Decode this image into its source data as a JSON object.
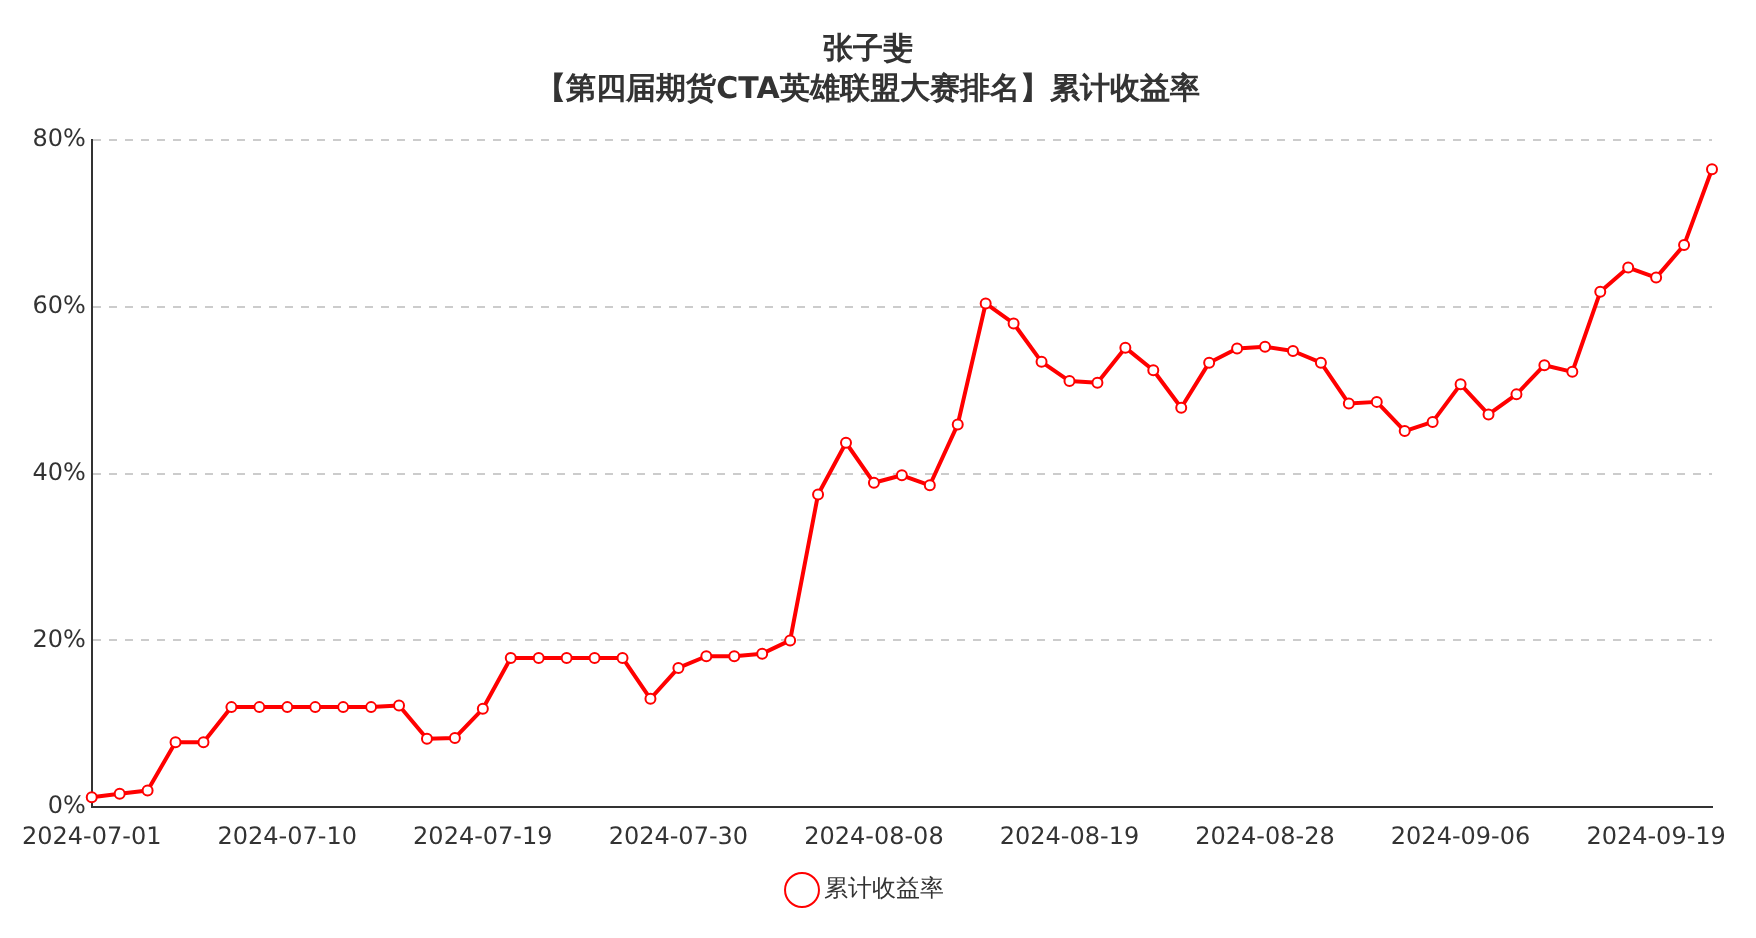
{
  "chart_data": {
    "type": "line",
    "title": "张子斐",
    "subtitle": "【第四届期货CTA英雄联盟大赛排名】累计收益率",
    "categories": [
      "2024-07-01",
      null,
      null,
      null,
      null,
      null,
      null,
      "2024-07-10",
      null,
      null,
      null,
      null,
      null,
      null,
      "2024-07-19",
      null,
      null,
      null,
      null,
      null,
      null,
      "2024-07-30",
      null,
      null,
      null,
      null,
      null,
      null,
      "2024-08-08",
      null,
      null,
      null,
      null,
      null,
      null,
      "2024-08-19",
      null,
      null,
      null,
      null,
      null,
      null,
      "2024-08-28",
      null,
      null,
      null,
      null,
      null,
      null,
      "2024-09-06",
      null,
      null,
      null,
      null,
      null,
      null,
      "2024-09-19",
      null,
      null
    ],
    "series": [
      {
        "name": "累计收益率",
        "color": "#ff0000",
        "values": [
          1.2,
          1.6,
          2.0,
          7.8,
          7.8,
          12.0,
          12.0,
          12.0,
          12.0,
          12.0,
          12.0,
          12.2,
          8.2,
          8.3,
          11.8,
          17.9,
          17.9,
          17.9,
          17.9,
          17.9,
          13.0,
          16.7,
          18.1,
          18.1,
          18.4,
          20.0,
          37.5,
          43.7,
          38.9,
          39.8,
          38.6,
          45.9,
          60.4,
          58.0,
          53.4,
          51.1,
          50.9,
          55.1,
          52.4,
          47.9,
          53.3,
          55.0,
          55.2,
          54.7,
          53.3,
          48.4,
          48.6,
          45.1,
          46.2,
          50.7,
          47.1,
          49.5,
          53.0,
          52.2,
          61.8,
          64.7,
          63.5,
          67.4,
          76.5
        ]
      }
    ],
    "ylim": [
      0,
      80
    ],
    "yticks": [
      {
        "value": 0,
        "label": "0%"
      },
      {
        "value": 20,
        "label": "20%"
      },
      {
        "value": 40,
        "label": "40%"
      },
      {
        "value": 60,
        "label": "60%"
      },
      {
        "value": 80,
        "label": "80%"
      }
    ],
    "grid": "y",
    "legend": "bottom",
    "marker": "circle",
    "line_style": "solid"
  }
}
